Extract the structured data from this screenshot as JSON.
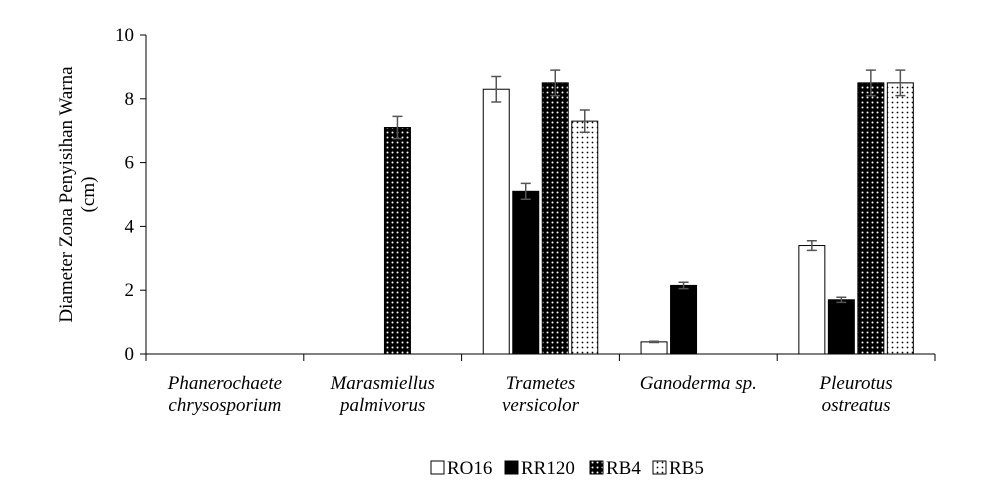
{
  "chart_data": {
    "type": "bar",
    "y_label": "Diameter Zona Penyisihan Warna\n(cm)",
    "categories": [
      "Phanerochaete\nchrysosporium",
      "Marasmiellus\npalmivorus",
      "Trametes\nversicolor",
      "Ganoderma sp.",
      "Pleurotus\nostreatus"
    ],
    "series": [
      {
        "name": "RO16",
        "color": "#ffffff",
        "pattern": "none",
        "values": [
          0,
          0,
          8.3,
          0.38,
          3.4
        ],
        "errors": [
          null,
          null,
          0.4,
          0.02,
          0.15
        ]
      },
      {
        "name": "RR120",
        "color": "#000000",
        "pattern": "none",
        "values": [
          0,
          0,
          5.1,
          2.15,
          1.7
        ],
        "errors": [
          null,
          null,
          0.25,
          0.1,
          0.08
        ]
      },
      {
        "name": "RB4",
        "color": "#000000",
        "pattern": "white-dots",
        "values": [
          0,
          7.1,
          8.5,
          0,
          8.5
        ],
        "errors": [
          null,
          0.35,
          0.4,
          null,
          0.4
        ]
      },
      {
        "name": "RB5",
        "color": "#ffffff",
        "pattern": "black-dots",
        "values": [
          0,
          0,
          7.3,
          0,
          8.5
        ],
        "errors": [
          null,
          null,
          0.35,
          null,
          0.4
        ]
      }
    ],
    "ylim": [
      0,
      10
    ],
    "yticks": [
      0,
      2,
      4,
      6,
      8,
      10
    ],
    "legend": "bottom"
  }
}
